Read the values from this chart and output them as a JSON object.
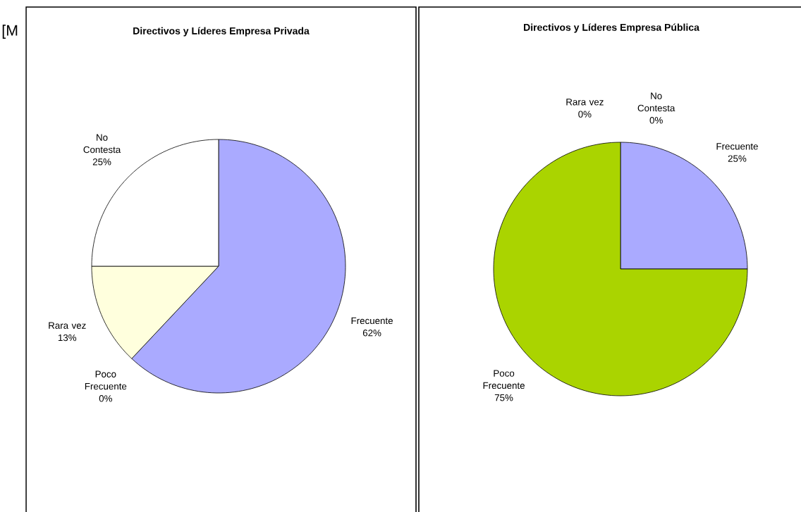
{
  "chart_data": [
    {
      "type": "pie",
      "title": "Directivos y Líderes Empresa Privada",
      "categories": [
        "Frecuente",
        "Poco Frecuente",
        "Rara vez",
        "No Contesta"
      ],
      "values": [
        62,
        0,
        13,
        25
      ],
      "colors": [
        "#aaaaff",
        "#aad400",
        "#ffffdd",
        "#ffffff"
      ],
      "value_labels": [
        "62%",
        "0%",
        "13%",
        "25%"
      ],
      "annotations": [
        "[M"
      ]
    },
    {
      "type": "pie",
      "title": "Directivos y Líderes Empresa Pública",
      "categories": [
        "Frecuente",
        "Poco Frecuente",
        "Rara vez",
        "No Contesta"
      ],
      "values": [
        25,
        75,
        0,
        0
      ],
      "colors": [
        "#aaaaff",
        "#aad400",
        "#ffffdd",
        "#ffffff"
      ],
      "value_labels": [
        "25%",
        "75%",
        "0%",
        "0%"
      ]
    }
  ]
}
